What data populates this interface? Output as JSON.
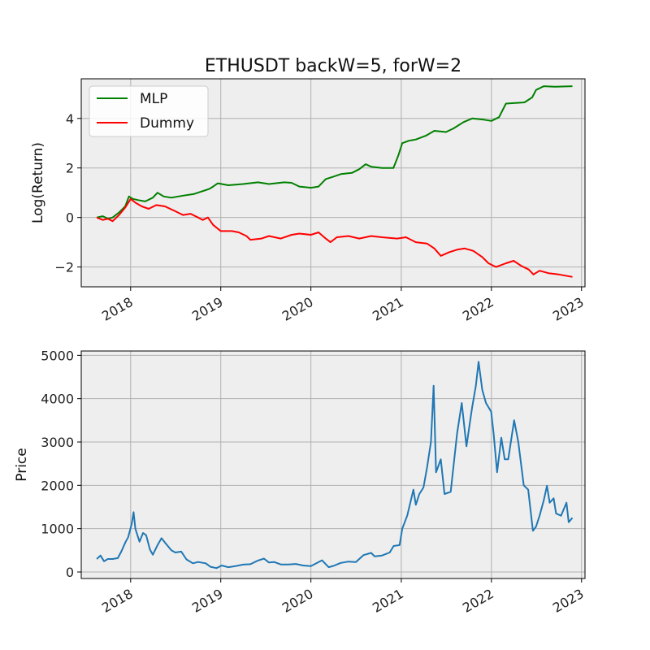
{
  "chart_data": [
    {
      "type": "line",
      "title": "ETHUSDT backW=5, forW=2",
      "xlabel": "",
      "ylabel": "Log(Return)",
      "xlim": [
        "2017-06-15",
        "2023-01-15"
      ],
      "ylim": [
        -2.8,
        5.6
      ],
      "yticks": [
        -2,
        0,
        2,
        4
      ],
      "xticks": [
        "2018",
        "2019",
        "2020",
        "2021",
        "2022",
        "2023"
      ],
      "grid": true,
      "legend": "upper left",
      "background": "#eeeeee",
      "series": [
        {
          "name": "MLP",
          "color": "#008000",
          "points": [
            [
              "2017-08-17",
              0.0
            ],
            [
              "2017-09-10",
              0.05
            ],
            [
              "2017-10-01",
              -0.05
            ],
            [
              "2017-10-20",
              0.0
            ],
            [
              "2017-11-15",
              0.2
            ],
            [
              "2017-12-10",
              0.45
            ],
            [
              "2017-12-25",
              0.85
            ],
            [
              "2018-01-10",
              0.75
            ],
            [
              "2018-02-01",
              0.7
            ],
            [
              "2018-03-01",
              0.65
            ],
            [
              "2018-04-01",
              0.8
            ],
            [
              "2018-04-20",
              1.0
            ],
            [
              "2018-05-15",
              0.85
            ],
            [
              "2018-06-15",
              0.8
            ],
            [
              "2018-08-01",
              0.88
            ],
            [
              "2018-09-15",
              0.95
            ],
            [
              "2018-10-15",
              1.05
            ],
            [
              "2018-11-15",
              1.15
            ],
            [
              "2018-12-01",
              1.25
            ],
            [
              "2018-12-20",
              1.38
            ],
            [
              "2019-02-01",
              1.3
            ],
            [
              "2019-04-01",
              1.35
            ],
            [
              "2019-06-01",
              1.42
            ],
            [
              "2019-07-15",
              1.35
            ],
            [
              "2019-09-15",
              1.42
            ],
            [
              "2019-10-15",
              1.4
            ],
            [
              "2019-11-15",
              1.25
            ],
            [
              "2020-01-01",
              1.2
            ],
            [
              "2020-02-01",
              1.25
            ],
            [
              "2020-03-01",
              1.55
            ],
            [
              "2020-04-01",
              1.65
            ],
            [
              "2020-05-01",
              1.75
            ],
            [
              "2020-06-15",
              1.8
            ],
            [
              "2020-07-15",
              1.95
            ],
            [
              "2020-08-10",
              2.15
            ],
            [
              "2020-09-01",
              2.05
            ],
            [
              "2020-10-15",
              2.0
            ],
            [
              "2020-11-30",
              2.0
            ],
            [
              "2020-12-20",
              2.5
            ],
            [
              "2021-01-05",
              3.0
            ],
            [
              "2021-02-01",
              3.1
            ],
            [
              "2021-03-01",
              3.15
            ],
            [
              "2021-04-10",
              3.3
            ],
            [
              "2021-05-15",
              3.5
            ],
            [
              "2021-07-01",
              3.45
            ],
            [
              "2021-08-01",
              3.6
            ],
            [
              "2021-09-10",
              3.85
            ],
            [
              "2021-10-15",
              4.0
            ],
            [
              "2021-12-01",
              3.95
            ],
            [
              "2022-01-01",
              3.9
            ],
            [
              "2022-02-01",
              4.05
            ],
            [
              "2022-03-01",
              4.6
            ],
            [
              "2022-05-15",
              4.65
            ],
            [
              "2022-06-15",
              4.85
            ],
            [
              "2022-07-01",
              5.15
            ],
            [
              "2022-08-01",
              5.3
            ],
            [
              "2022-09-15",
              5.28
            ],
            [
              "2022-11-25",
              5.3
            ]
          ]
        },
        {
          "name": "Dummy",
          "color": "#ff0000",
          "points": [
            [
              "2017-08-17",
              0.0
            ],
            [
              "2017-09-10",
              -0.1
            ],
            [
              "2017-10-01",
              -0.05
            ],
            [
              "2017-10-20",
              -0.15
            ],
            [
              "2017-11-15",
              0.1
            ],
            [
              "2017-12-10",
              0.4
            ],
            [
              "2018-01-01",
              0.75
            ],
            [
              "2018-01-20",
              0.6
            ],
            [
              "2018-02-15",
              0.45
            ],
            [
              "2018-03-15",
              0.35
            ],
            [
              "2018-04-15",
              0.5
            ],
            [
              "2018-05-20",
              0.45
            ],
            [
              "2018-07-01",
              0.25
            ],
            [
              "2018-08-01",
              0.1
            ],
            [
              "2018-09-01",
              0.15
            ],
            [
              "2018-10-01",
              0.0
            ],
            [
              "2018-10-20",
              -0.1
            ],
            [
              "2018-11-10",
              0.0
            ],
            [
              "2018-12-01",
              -0.3
            ],
            [
              "2019-01-01",
              -0.55
            ],
            [
              "2019-02-15",
              -0.55
            ],
            [
              "2019-03-15",
              -0.6
            ],
            [
              "2019-04-15",
              -0.75
            ],
            [
              "2019-05-01",
              -0.9
            ],
            [
              "2019-06-15",
              -0.85
            ],
            [
              "2019-07-15",
              -0.75
            ],
            [
              "2019-09-01",
              -0.85
            ],
            [
              "2019-10-15",
              -0.7
            ],
            [
              "2019-11-15",
              -0.65
            ],
            [
              "2020-01-01",
              -0.7
            ],
            [
              "2020-02-01",
              -0.6
            ],
            [
              "2020-03-01",
              -0.85
            ],
            [
              "2020-03-20",
              -1.0
            ],
            [
              "2020-04-15",
              -0.8
            ],
            [
              "2020-06-01",
              -0.75
            ],
            [
              "2020-07-15",
              -0.85
            ],
            [
              "2020-09-01",
              -0.75
            ],
            [
              "2020-10-15",
              -0.8
            ],
            [
              "2020-12-15",
              -0.85
            ],
            [
              "2021-01-20",
              -0.8
            ],
            [
              "2021-03-01",
              -1.0
            ],
            [
              "2021-04-15",
              -1.05
            ],
            [
              "2021-05-15",
              -1.25
            ],
            [
              "2021-06-10",
              -1.55
            ],
            [
              "2021-07-15",
              -1.4
            ],
            [
              "2021-08-15",
              -1.3
            ],
            [
              "2021-09-15",
              -1.25
            ],
            [
              "2021-10-20",
              -1.35
            ],
            [
              "2021-11-25",
              -1.6
            ],
            [
              "2021-12-20",
              -1.85
            ],
            [
              "2022-01-20",
              -2.0
            ],
            [
              "2022-03-01",
              -1.85
            ],
            [
              "2022-04-01",
              -1.75
            ],
            [
              "2022-05-01",
              -1.95
            ],
            [
              "2022-06-01",
              -2.1
            ],
            [
              "2022-06-20",
              -2.3
            ],
            [
              "2022-07-15",
              -2.15
            ],
            [
              "2022-08-20",
              -2.25
            ],
            [
              "2022-10-01",
              -2.3
            ],
            [
              "2022-11-25",
              -2.4
            ]
          ]
        }
      ]
    },
    {
      "type": "line",
      "title": "",
      "xlabel": "",
      "ylabel": "Price",
      "xlim": [
        "2017-06-15",
        "2023-01-15"
      ],
      "ylim": [
        -150,
        5100
      ],
      "yticks": [
        0,
        1000,
        2000,
        3000,
        4000,
        5000
      ],
      "xticks": [
        "2018",
        "2019",
        "2020",
        "2021",
        "2022",
        "2023"
      ],
      "grid": true,
      "background": "#eeeeee",
      "series": [
        {
          "color": "#1f77b4",
          "points": [
            [
              "2017-08-17",
              300
            ],
            [
              "2017-09-01",
              380
            ],
            [
              "2017-09-15",
              250
            ],
            [
              "2017-10-01",
              300
            ],
            [
              "2017-10-20",
              300
            ],
            [
              "2017-11-10",
              320
            ],
            [
              "2017-11-25",
              480
            ],
            [
              "2017-12-12",
              700
            ],
            [
              "2017-12-22",
              800
            ],
            [
              "2018-01-05",
              1100
            ],
            [
              "2018-01-13",
              1380
            ],
            [
              "2018-01-20",
              1000
            ],
            [
              "2018-02-06",
              700
            ],
            [
              "2018-02-20",
              900
            ],
            [
              "2018-03-05",
              850
            ],
            [
              "2018-03-20",
              520
            ],
            [
              "2018-04-01",
              400
            ],
            [
              "2018-04-20",
              620
            ],
            [
              "2018-05-06",
              780
            ],
            [
              "2018-05-20",
              680
            ],
            [
              "2018-06-15",
              500
            ],
            [
              "2018-07-01",
              450
            ],
            [
              "2018-07-25",
              470
            ],
            [
              "2018-08-15",
              290
            ],
            [
              "2018-09-10",
              200
            ],
            [
              "2018-10-01",
              230
            ],
            [
              "2018-11-01",
              200
            ],
            [
              "2018-11-20",
              120
            ],
            [
              "2018-12-15",
              90
            ],
            [
              "2019-01-05",
              150
            ],
            [
              "2019-02-01",
              110
            ],
            [
              "2019-03-01",
              135
            ],
            [
              "2019-04-01",
              170
            ],
            [
              "2019-05-01",
              180
            ],
            [
              "2019-05-30",
              260
            ],
            [
              "2019-06-25",
              310
            ],
            [
              "2019-07-15",
              220
            ],
            [
              "2019-08-05",
              230
            ],
            [
              "2019-09-01",
              175
            ],
            [
              "2019-10-01",
              175
            ],
            [
              "2019-11-01",
              185
            ],
            [
              "2019-12-01",
              150
            ],
            [
              "2020-01-01",
              135
            ],
            [
              "2020-02-15",
              270
            ],
            [
              "2020-03-13",
              110
            ],
            [
              "2020-04-01",
              140
            ],
            [
              "2020-05-01",
              210
            ],
            [
              "2020-06-01",
              240
            ],
            [
              "2020-07-01",
              230
            ],
            [
              "2020-08-01",
              390
            ],
            [
              "2020-09-01",
              440
            ],
            [
              "2020-09-15",
              360
            ],
            [
              "2020-10-15",
              380
            ],
            [
              "2020-11-15",
              450
            ],
            [
              "2020-12-01",
              600
            ],
            [
              "2020-12-25",
              620
            ],
            [
              "2021-01-05",
              1000
            ],
            [
              "2021-01-25",
              1300
            ],
            [
              "2021-02-19",
              1900
            ],
            [
              "2021-03-01",
              1550
            ],
            [
              "2021-03-15",
              1800
            ],
            [
              "2021-04-01",
              1950
            ],
            [
              "2021-04-15",
              2400
            ],
            [
              "2021-05-01",
              3000
            ],
            [
              "2021-05-12",
              4300
            ],
            [
              "2021-05-22",
              2300
            ],
            [
              "2021-06-10",
              2600
            ],
            [
              "2021-06-25",
              1800
            ],
            [
              "2021-07-20",
              1850
            ],
            [
              "2021-08-15",
              3200
            ],
            [
              "2021-09-03",
              3900
            ],
            [
              "2021-09-22",
              2900
            ],
            [
              "2021-10-15",
              3800
            ],
            [
              "2021-10-30",
              4300
            ],
            [
              "2021-11-10",
              4850
            ],
            [
              "2021-11-25",
              4200
            ],
            [
              "2021-12-10",
              3900
            ],
            [
              "2021-12-31",
              3700
            ],
            [
              "2022-01-10",
              3200
            ],
            [
              "2022-01-24",
              2300
            ],
            [
              "2022-02-10",
              3100
            ],
            [
              "2022-02-24",
              2600
            ],
            [
              "2022-03-10",
              2600
            ],
            [
              "2022-04-03",
              3500
            ],
            [
              "2022-04-20",
              3000
            ],
            [
              "2022-05-12",
              2000
            ],
            [
              "2022-05-30",
              1900
            ],
            [
              "2022-06-18",
              950
            ],
            [
              "2022-07-01",
              1050
            ],
            [
              "2022-07-15",
              1300
            ],
            [
              "2022-08-01",
              1650
            ],
            [
              "2022-08-14",
              1990
            ],
            [
              "2022-08-25",
              1600
            ],
            [
              "2022-09-10",
              1700
            ],
            [
              "2022-09-20",
              1350
            ],
            [
              "2022-10-10",
              1300
            ],
            [
              "2022-11-01",
              1600
            ],
            [
              "2022-11-10",
              1150
            ],
            [
              "2022-11-25",
              1250
            ]
          ]
        }
      ]
    }
  ]
}
